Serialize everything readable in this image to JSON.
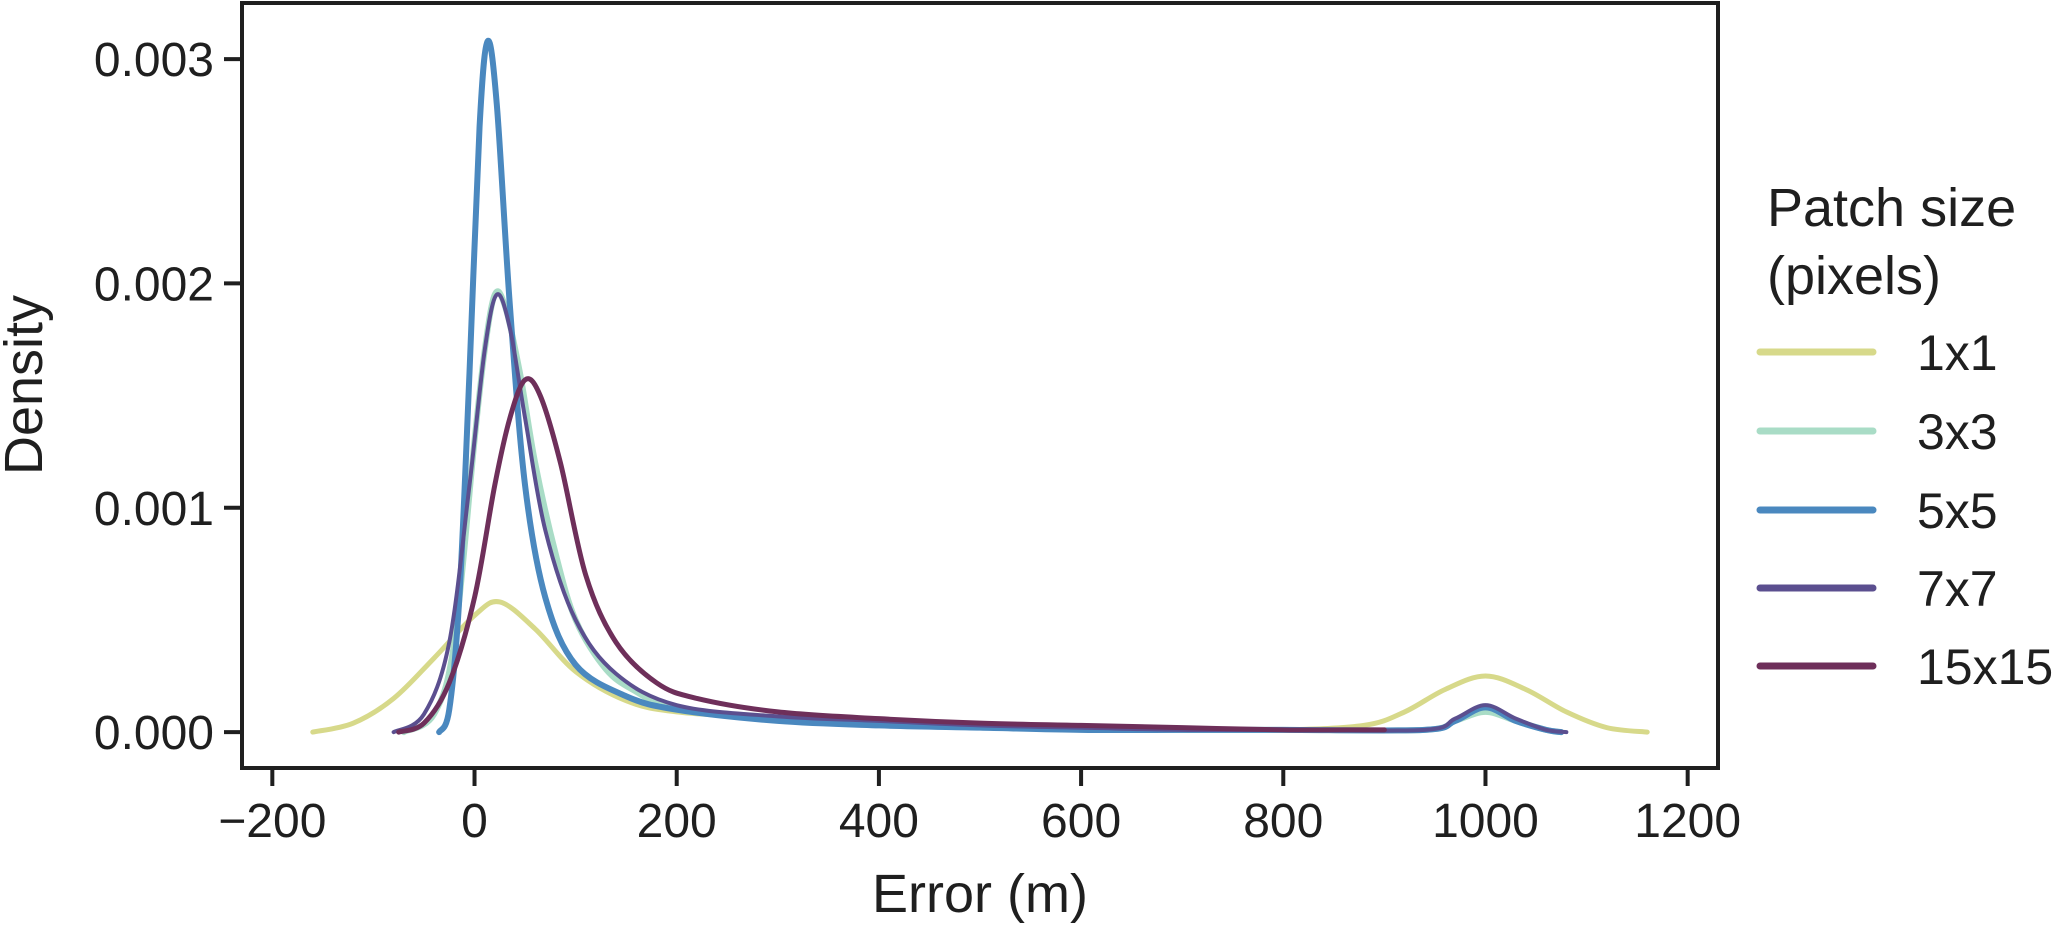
{
  "chart_data": {
    "type": "line",
    "xlabel": "Error (m)",
    "ylabel": "Density",
    "xlim": [
      -230,
      1230
    ],
    "ylim": [
      -0.00016,
      0.00325
    ],
    "xticks": [
      -200,
      0,
      200,
      400,
      600,
      800,
      1000,
      1200
    ],
    "xtick_labels": [
      "−200",
      "0",
      "200",
      "400",
      "600",
      "800",
      "1000",
      "1200"
    ],
    "yticks": [
      0.0,
      0.001,
      0.002,
      0.003
    ],
    "ytick_labels": [
      "0.000",
      "0.001",
      "0.002",
      "0.003"
    ],
    "grid": false,
    "legend": {
      "title_lines": [
        "Patch size",
        "(pixels)"
      ],
      "placement": "outside-right"
    },
    "series": [
      {
        "name": "1x1",
        "color": "#d7d98a",
        "points": [
          [
            -160,
            0.0
          ],
          [
            -120,
            4e-05
          ],
          [
            -80,
            0.00015
          ],
          [
            -40,
            0.00033
          ],
          [
            0,
            0.00052
          ],
          [
            25,
            0.00058
          ],
          [
            60,
            0.00046
          ],
          [
            100,
            0.00027
          ],
          [
            150,
            0.00014
          ],
          [
            200,
            9e-05
          ],
          [
            300,
            6e-05
          ],
          [
            400,
            4e-05
          ],
          [
            500,
            3e-05
          ],
          [
            600,
            2e-05
          ],
          [
            700,
            1e-05
          ],
          [
            800,
            1e-05
          ],
          [
            880,
            3e-05
          ],
          [
            920,
            9e-05
          ],
          [
            960,
            0.00019
          ],
          [
            1000,
            0.00025
          ],
          [
            1040,
            0.00019
          ],
          [
            1080,
            9e-05
          ],
          [
            1120,
            2e-05
          ],
          [
            1160,
            0.0
          ]
        ]
      },
      {
        "name": "3x3",
        "color": "#a9dcc6",
        "points": [
          [
            -70,
            0.0
          ],
          [
            -40,
            8e-05
          ],
          [
            -20,
            0.0004
          ],
          [
            0,
            0.0013
          ],
          [
            10,
            0.0017
          ],
          [
            20,
            0.00195
          ],
          [
            30,
            0.0019
          ],
          [
            45,
            0.0016
          ],
          [
            60,
            0.0012
          ],
          [
            80,
            0.0008
          ],
          [
            100,
            0.0005
          ],
          [
            130,
            0.00028
          ],
          [
            160,
            0.00018
          ],
          [
            200,
            0.0001
          ],
          [
            300,
            6e-05
          ],
          [
            400,
            4e-05
          ],
          [
            500,
            3e-05
          ],
          [
            600,
            2e-05
          ],
          [
            700,
            1e-05
          ],
          [
            800,
            1e-05
          ],
          [
            940,
            1e-05
          ],
          [
            970,
            5e-05
          ],
          [
            1000,
            9e-05
          ],
          [
            1030,
            5e-05
          ],
          [
            1060,
            1e-05
          ],
          [
            1075,
            0.0
          ]
        ]
      },
      {
        "name": "5x5",
        "color": "#4a88bf",
        "points": [
          [
            -35,
            0.0
          ],
          [
            -25,
            0.0001
          ],
          [
            -15,
            0.0006
          ],
          [
            -5,
            0.0016
          ],
          [
            5,
            0.0027
          ],
          [
            13,
            0.00308
          ],
          [
            22,
            0.0028
          ],
          [
            35,
            0.0019
          ],
          [
            50,
            0.0011
          ],
          [
            70,
            0.0006
          ],
          [
            100,
            0.0003
          ],
          [
            150,
            0.00016
          ],
          [
            200,
            0.0001
          ],
          [
            300,
            5e-05
          ],
          [
            400,
            3e-05
          ],
          [
            500,
            2e-05
          ],
          [
            600,
            1e-05
          ],
          [
            700,
            1e-05
          ],
          [
            800,
            1e-05
          ],
          [
            940,
            1e-05
          ],
          [
            970,
            5e-05
          ],
          [
            1000,
            0.00011
          ],
          [
            1030,
            5e-05
          ],
          [
            1060,
            1e-05
          ],
          [
            1075,
            0.0
          ]
        ]
      },
      {
        "name": "7x7",
        "color": "#5b4f8f",
        "points": [
          [
            -80,
            0.0
          ],
          [
            -50,
            8e-05
          ],
          [
            -25,
            0.0004
          ],
          [
            -5,
            0.0011
          ],
          [
            10,
            0.0017
          ],
          [
            22,
            0.00195
          ],
          [
            35,
            0.0018
          ],
          [
            50,
            0.0014
          ],
          [
            70,
            0.0009
          ],
          [
            100,
            0.0005
          ],
          [
            140,
            0.00026
          ],
          [
            200,
            0.00012
          ],
          [
            300,
            7e-05
          ],
          [
            400,
            5e-05
          ],
          [
            500,
            3e-05
          ],
          [
            600,
            2e-05
          ],
          [
            700,
            1e-05
          ],
          [
            800,
            1e-05
          ],
          [
            940,
            1e-05
          ],
          [
            970,
            6e-05
          ],
          [
            1000,
            0.00012
          ],
          [
            1030,
            6e-05
          ],
          [
            1060,
            1e-05
          ],
          [
            1080,
            0.0
          ]
        ]
      },
      {
        "name": "15x15",
        "color": "#6e2f5a",
        "points": [
          [
            -75,
            0.0
          ],
          [
            -50,
            4e-05
          ],
          [
            -25,
            0.00022
          ],
          [
            0,
            0.0006
          ],
          [
            20,
            0.0011
          ],
          [
            35,
            0.0014
          ],
          [
            50,
            0.00157
          ],
          [
            65,
            0.0015
          ],
          [
            85,
            0.0012
          ],
          [
            110,
            0.0007
          ],
          [
            140,
            0.0004
          ],
          [
            180,
            0.00022
          ],
          [
            220,
            0.00015
          ],
          [
            300,
            9e-05
          ],
          [
            400,
            6e-05
          ],
          [
            500,
            4e-05
          ],
          [
            600,
            3e-05
          ],
          [
            700,
            2e-05
          ],
          [
            800,
            1e-05
          ],
          [
            880,
            1e-05
          ],
          [
            900,
            1e-05
          ]
        ]
      }
    ]
  }
}
